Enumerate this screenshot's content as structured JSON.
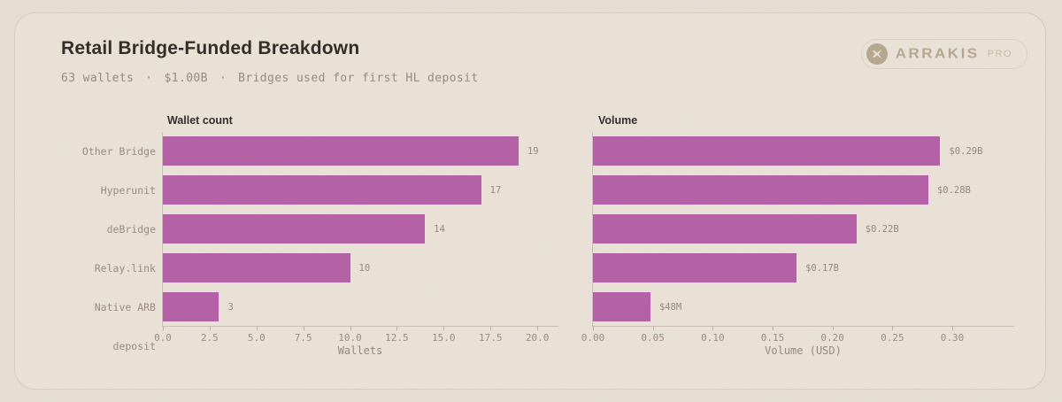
{
  "header": {
    "title": "Retail Bridge-Funded Breakdown",
    "stats": [
      "63 wallets",
      "$1.00B",
      "Bridges used for first HL deposit"
    ],
    "separator": "·"
  },
  "logo": {
    "brand": "ARRAKIS",
    "tier": "PRO",
    "icon": "x-circle-icon"
  },
  "colors": {
    "page_background": "#e6ded3",
    "card_background": "#eae2d7",
    "card_border": "#d8cdbe",
    "title_text": "#2e2b27",
    "muted_text": "#968a7b",
    "axis_line": "#c9bdae",
    "bar": "#b45fa5",
    "logo_tan": "#b5a78f"
  },
  "chart_data": [
    {
      "type": "bar",
      "orientation": "horizontal",
      "title": "Wallet count",
      "categories": [
        "Other Bridge",
        "Hyperunit",
        "deBridge",
        "Relay.link",
        "Native ARB deposit"
      ],
      "values": [
        19,
        17,
        14,
        10,
        3
      ],
      "value_labels": [
        "19",
        "17",
        "14",
        "10",
        "3"
      ],
      "xlabel": "Wallets",
      "xlim": [
        0,
        21.13
      ],
      "xticks": [
        0.0,
        2.5,
        5.0,
        7.5,
        10.0,
        12.5,
        15.0,
        17.5,
        20.0
      ],
      "xtick_labels": [
        "0.0",
        "2.5",
        "5.0",
        "7.5",
        "10.0",
        "12.5",
        "15.0",
        "17.5",
        "20.0"
      ],
      "grid": false,
      "legend": false,
      "show_category_labels": true,
      "bar_color": "#b45fa5"
    },
    {
      "type": "bar",
      "orientation": "horizontal",
      "title": "Volume",
      "categories": [
        "Other Bridge",
        "Hyperunit",
        "deBridge",
        "Relay.link",
        "Native ARB deposit"
      ],
      "values": [
        0.29,
        0.28,
        0.22,
        0.17,
        0.048
      ],
      "value_labels": [
        "$0.29B",
        "$0.28B",
        "$0.22B",
        "$0.17B",
        "$48M"
      ],
      "xlabel": "Volume (USD)",
      "xlim": [
        0,
        0.3517
      ],
      "xticks": [
        0.0,
        0.05,
        0.1,
        0.15,
        0.2,
        0.25,
        0.3
      ],
      "xtick_labels": [
        "0.00",
        "0.05",
        "0.10",
        "0.15",
        "0.20",
        "0.25",
        "0.30"
      ],
      "grid": false,
      "legend": false,
      "show_category_labels": false,
      "bar_color": "#b45fa5"
    }
  ]
}
